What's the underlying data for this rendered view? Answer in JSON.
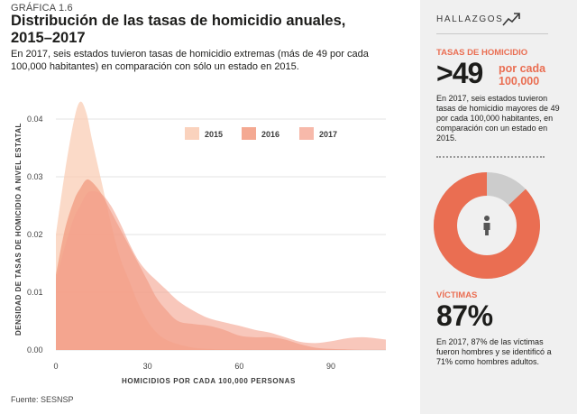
{
  "graphic_label": "GRÁFICA 1.6",
  "title": "Distribución de las tasas de homicidio anuales, 2015–2017",
  "subtitle": "En 2017, seis estados tuvieron tasas de homicidio extremas  (más de 49 por cada 100,000 habitantes) en comparación con sólo un estado en 2015.",
  "source": "Fuente: SESNSP",
  "colors": {
    "s2015": "#f9cdb6",
    "s2016": "#f08c6e",
    "s2017": "#f4a28e",
    "accent": "#ea6e52",
    "grey": "#cccccc"
  },
  "chart_data": {
    "type": "area",
    "xlabel": "HOMICIDIOS POR CADA 100,000 PERSONAS",
    "ylabel": "DENSIDAD DE TASAS DE HOMICIDIO A NIVEL ESTATAL",
    "xlim": [
      0,
      108
    ],
    "ylim": [
      0,
      0.045
    ],
    "xticks": [
      0,
      30,
      60,
      90
    ],
    "yticks": [
      0.0,
      0.01,
      0.02,
      0.03,
      0.04
    ],
    "ytick_labels": [
      "0.00",
      "0.01",
      "0.02",
      "0.03",
      "0.04"
    ],
    "grid": true,
    "legend": "top-right",
    "x": [
      0,
      3,
      6,
      8,
      10,
      12,
      15,
      18,
      21,
      24,
      27,
      30,
      33,
      36,
      40,
      45,
      50,
      55,
      60,
      65,
      70,
      75,
      80,
      85,
      90,
      95,
      100,
      105,
      108
    ],
    "series": [
      {
        "name": "2015",
        "values": [
          0.02,
          0.031,
          0.04,
          0.043,
          0.041,
          0.036,
          0.029,
          0.022,
          0.016,
          0.012,
          0.008,
          0.005,
          0.003,
          0.0018,
          0.001,
          0.0004,
          0.0002,
          0.0001,
          0.0001,
          0.0,
          0.0,
          0.0,
          0.0,
          0.0,
          0.0,
          0.0,
          0.0,
          0.0,
          0.0
        ]
      },
      {
        "name": "2016",
        "values": [
          0.013,
          0.021,
          0.026,
          0.028,
          0.0295,
          0.029,
          0.027,
          0.024,
          0.021,
          0.018,
          0.015,
          0.012,
          0.009,
          0.007,
          0.005,
          0.0045,
          0.0042,
          0.0035,
          0.0025,
          0.0022,
          0.0022,
          0.0018,
          0.001,
          0.0004,
          0.0002,
          0.0001,
          0.0,
          0.0,
          0.0
        ]
      },
      {
        "name": "2017",
        "values": [
          0.012,
          0.018,
          0.023,
          0.025,
          0.027,
          0.0275,
          0.027,
          0.025,
          0.022,
          0.0185,
          0.0155,
          0.0135,
          0.012,
          0.0105,
          0.0085,
          0.0068,
          0.0055,
          0.0048,
          0.0042,
          0.0035,
          0.003,
          0.0022,
          0.0014,
          0.0012,
          0.0015,
          0.002,
          0.0022,
          0.002,
          0.0018
        ]
      }
    ]
  },
  "sidebar": {
    "title": "HALLAZGOS",
    "icon": "trend-up-icon",
    "stat1": {
      "label": "TASAS DE HOMICIDIO",
      "value": ">49",
      "unit_line1": "por cada",
      "unit_line2": "100,000",
      "description": "En 2017, seis estados tuvieron tasas de homicidio mayores de 49 por cada 100,000 habitantes, en comparación con un estado en 2015."
    },
    "donut": {
      "icon": "person-icon",
      "primary_fraction": 0.87
    },
    "stat2": {
      "label": "VÍCTIMAS",
      "value": "87%",
      "description": "En 2017, 87% de las víctimas fueron hombres y se identificó a 71% como hombres adultos."
    }
  }
}
